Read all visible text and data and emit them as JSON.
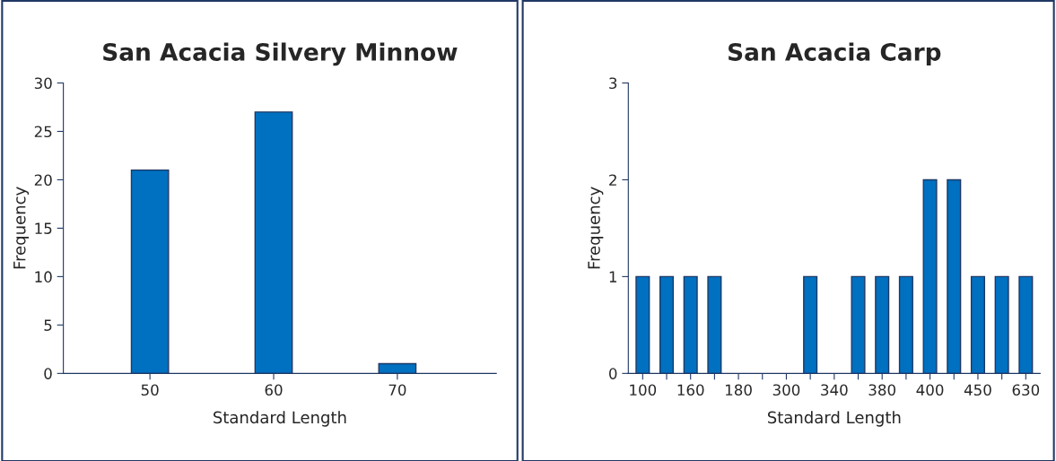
{
  "chart_data": [
    {
      "type": "bar",
      "title": "San Acacia Silvery Minnow",
      "xlabel": "Standard Length",
      "ylabel": "Frequency",
      "categories": [
        "50",
        "60",
        "70"
      ],
      "series": [
        {
          "color": "#0070c0",
          "values": [
            21,
            27,
            1
          ]
        }
      ],
      "ylim": [
        0,
        30
      ],
      "yticks": [
        0,
        5,
        10,
        15,
        20,
        25,
        30
      ],
      "grid": false,
      "legend": false
    },
    {
      "type": "bar",
      "title": "San Acacia Carp",
      "xlabel": "Standard Length",
      "ylabel": "Frequency",
      "categories": [
        "100",
        null,
        "160",
        null,
        "180",
        null,
        "300",
        null,
        "340",
        null,
        "380",
        null,
        "400",
        null,
        "450",
        null,
        "630"
      ],
      "series": [
        {
          "color": "#0070c0",
          "values": [
            1,
            1,
            1,
            1,
            0,
            0,
            0,
            1,
            0,
            1,
            1,
            1,
            2,
            2,
            1,
            1,
            1
          ]
        }
      ],
      "ylim": [
        0,
        3
      ],
      "yticks": [
        0,
        1,
        2,
        3
      ],
      "grid": false,
      "legend": false
    }
  ]
}
